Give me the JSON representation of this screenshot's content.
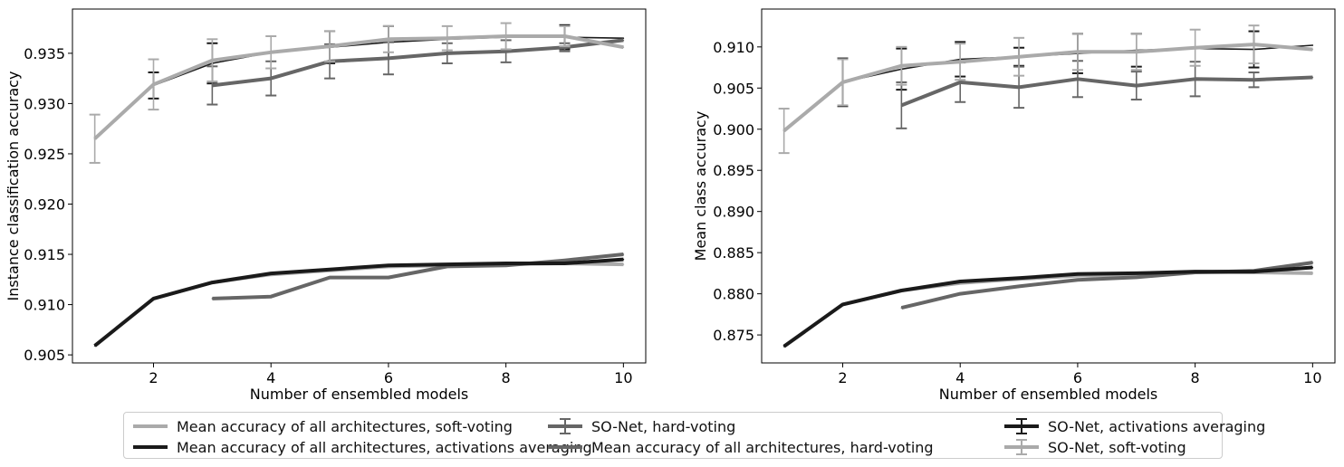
{
  "colors": {
    "soft_mean": "#aaaaaa",
    "hard_mean": "#666666",
    "act_mean": "#1a1a1a",
    "sonet_act": "#1a1a1a",
    "sonet_hard": "#666666",
    "sonet_soft": "#aaaaaa"
  },
  "legend": [
    {
      "key": "soft_mean",
      "label": "Mean accuracy of all architectures, soft-voting",
      "style": "line",
      "color": "#aaaaaa"
    },
    {
      "key": "hard_mean",
      "label": "Mean accuracy of all architectures, hard-voting",
      "style": "line",
      "color": "#666666"
    },
    {
      "key": "act_mean",
      "label": "Mean accuracy of all architectures, activations averaging",
      "style": "line",
      "color": "#1a1a1a"
    },
    {
      "key": "sonet_act",
      "label": "SO-Net, activations averaging",
      "style": "errorbar",
      "color": "#1a1a1a"
    },
    {
      "key": "sonet_hard",
      "label": "SO-Net, hard-voting",
      "style": "errorbar",
      "color": "#666666"
    },
    {
      "key": "sonet_soft",
      "label": "SO-Net, soft-voting",
      "style": "errorbar",
      "color": "#aaaaaa"
    }
  ],
  "chart_data": [
    {
      "type": "line",
      "xlabel": "Number of ensembled models",
      "ylabel": "Instance classification accuracy",
      "xlim": [
        0.62,
        10.38
      ],
      "ylim": [
        0.9042,
        0.9394
      ],
      "xticks": [
        2,
        4,
        6,
        8,
        10
      ],
      "yticks": [
        0.905,
        0.91,
        0.915,
        0.92,
        0.925,
        0.93,
        0.935
      ],
      "ytick_labels": [
        "0.905",
        "0.910",
        "0.915",
        "0.920",
        "0.925",
        "0.930",
        "0.935"
      ],
      "series": [
        {
          "key": "sonet_act",
          "name": "SO-Net, activations averaging",
          "x": [
            1,
            2,
            3,
            4,
            5,
            6,
            7,
            8,
            9,
            10
          ],
          "y": [
            0.9265,
            0.9318,
            0.934,
            0.9351,
            0.9356,
            0.9361,
            0.9364,
            0.9366,
            0.9366,
            0.9365
          ],
          "err": [
            0,
            0.0013,
            0.002,
            0,
            0.0016,
            0.0016,
            0,
            0,
            0.0012,
            0
          ],
          "width": 1.6,
          "order": 4
        },
        {
          "key": "sonet_hard",
          "name": "SO-Net, hard-voting",
          "x": [
            3,
            4,
            5,
            6,
            7,
            8,
            9,
            10
          ],
          "y": [
            0.9318,
            0.9325,
            0.9342,
            0.9345,
            0.935,
            0.9352,
            0.9356,
            0.9363
          ],
          "err": [
            0.0019,
            0.0017,
            0.0017,
            0.0016,
            0.001,
            0.0011,
            0.0004,
            0
          ],
          "width": 4,
          "order": 5
        },
        {
          "key": "sonet_soft",
          "name": "SO-Net, soft-voting",
          "x": [
            1,
            2,
            3,
            4,
            5,
            6,
            7,
            8,
            9,
            10
          ],
          "y": [
            0.9265,
            0.9319,
            0.9343,
            0.9351,
            0.9357,
            0.9364,
            0.9365,
            0.9367,
            0.9367,
            0.9356
          ],
          "err": [
            0.0024,
            0.0025,
            0.0021,
            0.0016,
            0.0015,
            0.0013,
            0.0012,
            0.0013,
            0.001,
            0
          ],
          "width": 4,
          "order": 6
        },
        {
          "key": "soft_mean",
          "name": "Mean accuracy of all architectures, soft-voting",
          "x": [
            2,
            3,
            4,
            5,
            6,
            7,
            8,
            9,
            10
          ],
          "y": [
            0.9106,
            0.9122,
            0.913,
            0.9134,
            0.9138,
            0.9139,
            0.914,
            0.9141,
            0.914
          ],
          "width": 4,
          "order": 1
        },
        {
          "key": "hard_mean",
          "name": "Mean accuracy of all architectures, hard-voting",
          "x": [
            3,
            4,
            5,
            6,
            7,
            8,
            9,
            10
          ],
          "y": [
            0.9106,
            0.9108,
            0.9127,
            0.9127,
            0.9138,
            0.9139,
            0.9144,
            0.915
          ],
          "width": 4,
          "order": 2
        },
        {
          "key": "act_mean",
          "name": "Mean accuracy of all architectures, activations averaging",
          "x": [
            1,
            2,
            3,
            4,
            5,
            6,
            7,
            8,
            9,
            10
          ],
          "y": [
            0.9059,
            0.9106,
            0.9122,
            0.9131,
            0.9135,
            0.9139,
            0.914,
            0.9141,
            0.9141,
            0.9145
          ],
          "width": 4,
          "order": 3
        }
      ]
    },
    {
      "type": "line",
      "xlabel": "Number of ensembled models",
      "ylabel": "Mean class accuracy",
      "xlim": [
        0.62,
        10.38
      ],
      "ylim": [
        0.8716,
        0.9146
      ],
      "xticks": [
        2,
        4,
        6,
        8,
        10
      ],
      "yticks": [
        0.875,
        0.88,
        0.885,
        0.89,
        0.895,
        0.9,
        0.905,
        0.91
      ],
      "ytick_labels": [
        "0.875",
        "0.880",
        "0.885",
        "0.890",
        "0.895",
        "0.900",
        "0.905",
        "0.910"
      ],
      "series": [
        {
          "key": "sonet_act",
          "name": "SO-Net, activations averaging",
          "x": [
            1,
            2,
            3,
            4,
            5,
            6,
            7,
            8,
            9,
            10
          ],
          "y": [
            0.8998,
            0.9057,
            0.9073,
            0.9085,
            0.9088,
            0.9092,
            0.9096,
            0.9098,
            0.9097,
            0.9102
          ],
          "err": [
            0,
            0.0029,
            0.0025,
            0.0021,
            0.0011,
            0.0024,
            0.002,
            0,
            0.0022,
            0
          ],
          "width": 1.6,
          "order": 4
        },
        {
          "key": "sonet_hard",
          "name": "SO-Net, hard-voting",
          "x": [
            3,
            4,
            5,
            6,
            7,
            8,
            9,
            10
          ],
          "y": [
            0.9029,
            0.9057,
            0.9051,
            0.9061,
            0.9053,
            0.9061,
            0.906,
            0.9063
          ],
          "err": [
            0.0028,
            0.0024,
            0.0025,
            0.0022,
            0.0017,
            0.0021,
            0.0009,
            0
          ],
          "width": 4,
          "order": 5
        },
        {
          "key": "sonet_soft",
          "name": "SO-Net, soft-voting",
          "x": [
            1,
            2,
            3,
            4,
            5,
            6,
            7,
            8,
            9,
            10
          ],
          "y": [
            0.8998,
            0.9057,
            0.9077,
            0.9082,
            0.9088,
            0.9094,
            0.9094,
            0.9099,
            0.9103,
            0.9097
          ],
          "err": [
            0.0027,
            0.0028,
            0.0023,
            0.0022,
            0.0023,
            0.0022,
            0.0022,
            0.0022,
            0.0023,
            0
          ],
          "width": 4,
          "order": 6
        },
        {
          "key": "soft_mean",
          "name": "Mean accuracy of all architectures, soft-voting",
          "x": [
            2,
            3,
            4,
            5,
            6,
            7,
            8,
            9,
            10
          ],
          "y": [
            0.8787,
            0.8804,
            0.8813,
            0.8818,
            0.8822,
            0.8823,
            0.8826,
            0.8826,
            0.8825
          ],
          "width": 4,
          "order": 1
        },
        {
          "key": "hard_mean",
          "name": "Mean accuracy of all architectures, hard-voting",
          "x": [
            3,
            4,
            5,
            6,
            7,
            8,
            9,
            10
          ],
          "y": [
            0.8783,
            0.88,
            0.8809,
            0.8817,
            0.882,
            0.8826,
            0.8828,
            0.8838
          ],
          "width": 4,
          "order": 2
        },
        {
          "key": "act_mean",
          "name": "Mean accuracy of all architectures, activations averaging",
          "x": [
            1,
            2,
            3,
            4,
            5,
            6,
            7,
            8,
            9,
            10
          ],
          "y": [
            0.8736,
            0.8787,
            0.8804,
            0.8815,
            0.8819,
            0.8824,
            0.8825,
            0.8827,
            0.8827,
            0.8832
          ],
          "width": 4,
          "order": 3
        }
      ]
    }
  ]
}
